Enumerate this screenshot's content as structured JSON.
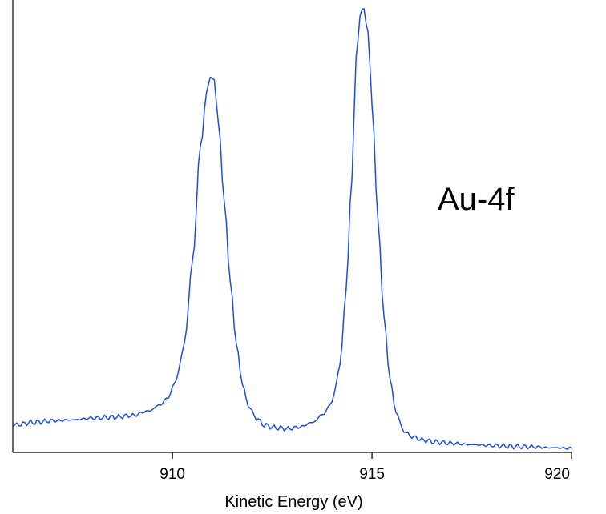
{
  "chart_data": {
    "type": "line",
    "title": "",
    "xlabel": "Kinetic Energy (eV)",
    "ylabel": "",
    "xlim": [
      906,
      920
    ],
    "ylim": [
      0,
      1
    ],
    "x_ticks": [
      910,
      915,
      920
    ],
    "x_tick_labels": [
      "910",
      "915",
      "920"
    ],
    "grid": false,
    "legend": "none",
    "annotation": "Au-4f",
    "series": [
      {
        "color": "#1f4fd6",
        "x": [
          906.0,
          906.5,
          907.0,
          907.5,
          908.0,
          908.5,
          909.0,
          909.4,
          909.7,
          909.9,
          910.1,
          910.3,
          910.5,
          910.7,
          910.85,
          910.95,
          911.05,
          911.15,
          911.3,
          911.45,
          911.6,
          911.75,
          911.9,
          912.1,
          912.3,
          912.6,
          912.9,
          913.2,
          913.5,
          913.8,
          914.0,
          914.2,
          914.35,
          914.5,
          914.6,
          914.7,
          914.8,
          914.9,
          915.0,
          915.15,
          915.3,
          915.45,
          915.6,
          915.8,
          916.0,
          916.3,
          916.6,
          917.0,
          917.5,
          918.0,
          918.5,
          919.0,
          919.5,
          920.0
        ],
        "y": [
          0.056,
          0.062,
          0.066,
          0.068,
          0.072,
          0.074,
          0.078,
          0.088,
          0.102,
          0.12,
          0.16,
          0.24,
          0.42,
          0.68,
          0.8,
          0.845,
          0.83,
          0.74,
          0.56,
          0.38,
          0.24,
          0.15,
          0.1,
          0.072,
          0.056,
          0.05,
          0.048,
          0.052,
          0.062,
          0.082,
          0.11,
          0.19,
          0.36,
          0.62,
          0.88,
          0.98,
          0.995,
          0.94,
          0.78,
          0.52,
          0.3,
          0.16,
          0.085,
          0.042,
          0.03,
          0.022,
          0.018,
          0.015,
          0.012,
          0.01,
          0.008,
          0.007,
          0.005,
          0.004
        ]
      }
    ]
  }
}
